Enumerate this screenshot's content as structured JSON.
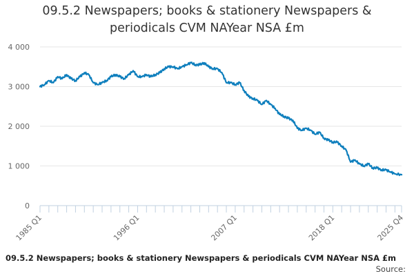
{
  "header": {
    "title": "09.5.2 Newspapers; books & stationery Newspapers & periodicals CVM NAYear NSA £m"
  },
  "footer": {
    "title": "09.5.2 Newspapers; books & stationery Newspapers & periodicals CVM NAYear NSA £m",
    "source_label": "Source:"
  },
  "colors": {
    "line": "#0f7fbd",
    "grid": "#e6e6e6",
    "axis": "#c0d0e0",
    "tick_text": "#666666"
  },
  "chart_data": {
    "type": "line",
    "title": "09.5.2 Newspapers; books & stationery Newspapers & periodicals CVM NAYear NSA £m",
    "xlabel": "",
    "ylabel": "",
    "ylim": [
      0,
      4000
    ],
    "yticks": [
      0,
      1000,
      2000,
      3000,
      4000
    ],
    "ytick_labels": [
      "0",
      "1 000",
      "2 000",
      "3 000",
      "4 000"
    ],
    "xlim": [
      "1985 Q1",
      "2025 Q4"
    ],
    "xticks": [
      "1985 Q1",
      "1996 Q1",
      "2007 Q1",
      "2018 Q1",
      "2025 Q4"
    ],
    "grid": true,
    "legend": "none",
    "series": [
      {
        "x": [
          "1985 Q1",
          "1985 Q3",
          "1986 Q1",
          "1986 Q3",
          "1987 Q1",
          "1987 Q3",
          "1988 Q1",
          "1988 Q3",
          "1989 Q1",
          "1989 Q3",
          "1990 Q1",
          "1990 Q3",
          "1991 Q1",
          "1991 Q3",
          "1992 Q1",
          "1992 Q3",
          "1993 Q1",
          "1993 Q3",
          "1994 Q1",
          "1994 Q3",
          "1995 Q1",
          "1995 Q3",
          "1996 Q1",
          "1996 Q3",
          "1997 Q1",
          "1997 Q3",
          "1998 Q1",
          "1998 Q3",
          "1999 Q1",
          "1999 Q3",
          "2000 Q1",
          "2000 Q3",
          "2001 Q1",
          "2001 Q3",
          "2002 Q1",
          "2002 Q3",
          "2003 Q1",
          "2003 Q3",
          "2004 Q1",
          "2004 Q3",
          "2005 Q1",
          "2005 Q3",
          "2006 Q1",
          "2006 Q3",
          "2007 Q1",
          "2007 Q3",
          "2008 Q1",
          "2008 Q3",
          "2009 Q1",
          "2009 Q3",
          "2010 Q1",
          "2010 Q3",
          "2011 Q1",
          "2011 Q3",
          "2012 Q1",
          "2012 Q3",
          "2013 Q1",
          "2013 Q3",
          "2014 Q1",
          "2014 Q3",
          "2015 Q1",
          "2015 Q3",
          "2016 Q1",
          "2016 Q3",
          "2017 Q1",
          "2017 Q3",
          "2018 Q1",
          "2018 Q3",
          "2019 Q1",
          "2019 Q3",
          "2020 Q1",
          "2020 Q3",
          "2021 Q1",
          "2021 Q3",
          "2022 Q1",
          "2022 Q3",
          "2023 Q1",
          "2023 Q3",
          "2024 Q1",
          "2024 Q3",
          "2025 Q1",
          "2025 Q4"
        ],
        "values": [
          3000,
          3050,
          3150,
          3100,
          3250,
          3200,
          3300,
          3200,
          3150,
          3250,
          3350,
          3300,
          3100,
          3050,
          3100,
          3150,
          3250,
          3300,
          3250,
          3200,
          3300,
          3400,
          3250,
          3250,
          3300,
          3250,
          3300,
          3350,
          3450,
          3500,
          3500,
          3450,
          3500,
          3550,
          3600,
          3550,
          3550,
          3600,
          3500,
          3450,
          3450,
          3350,
          3100,
          3100,
          3050,
          3100,
          2900,
          2750,
          2700,
          2650,
          2550,
          2650,
          2550,
          2450,
          2300,
          2250,
          2200,
          2150,
          1950,
          1900,
          1950,
          1900,
          1800,
          1850,
          1700,
          1650,
          1600,
          1600,
          1500,
          1400,
          1100,
          1150,
          1050,
          1000,
          1050,
          950,
          950,
          900,
          900,
          850,
          800,
          780
        ]
      }
    ]
  }
}
